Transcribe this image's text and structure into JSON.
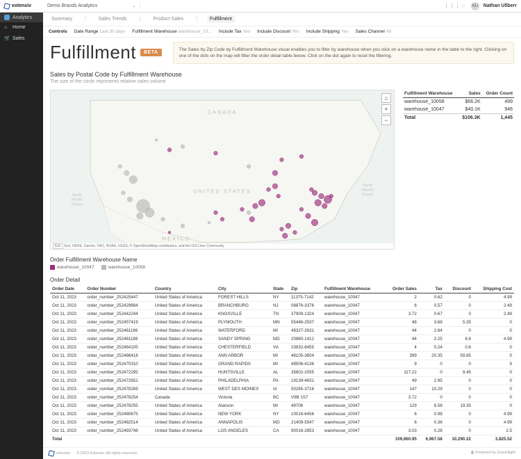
{
  "header": {
    "logo_text": "extensiv",
    "brand": "Demo Brands Analytics",
    "user": "Nathan Ullberr",
    "user_initials": "NU"
  },
  "sidebar": {
    "section_label": "Analytics",
    "items": [
      {
        "icon": "⌂",
        "label": "Home"
      },
      {
        "icon": "🛒",
        "label": "Sales"
      }
    ]
  },
  "tabs": {
    "items": [
      "Summary",
      "Sales Trends",
      "Product Sales",
      "Fulfillment"
    ],
    "active": "Fulfillment"
  },
  "controls": {
    "label": "Controls",
    "items": [
      {
        "k": "Date Range",
        "v": "Last 30 days"
      },
      {
        "k": "Fulfillment Warehouse",
        "v": "warehouse_10..."
      },
      {
        "k": "Include Tax",
        "v": "Yes"
      },
      {
        "k": "Include Discount",
        "v": "Yes"
      },
      {
        "k": "Include Shipping",
        "v": "Yes"
      },
      {
        "k": "Sales Channel",
        "v": "All"
      }
    ]
  },
  "hero": {
    "title": "Fulfillment",
    "badge": "BETA",
    "info": "The Sales by Zip Code by Fulfillment Warehouse visual enables you to filter by warehouse when you click on a warehouse name in the table to the right. Clicking on one of the dots on the map will filter the order detail table below. Click on the dot again to reset the filtering."
  },
  "map_section": {
    "title": "Sales by Postal Code by Fulfillment Warehouse",
    "subtitle": "The size of the circle represents relative sales volume",
    "attribution": "Esri, HERE, Garmin, FAO, NOAA, USGS, © OpenStreetMap contributors, and the GIS User Community",
    "labels": {
      "canada": "CANADA",
      "us": "UNITED STATES",
      "mexico": "MEXICO",
      "pacific": "North Pacific Ocean",
      "atlantic": "North Atlantic Ocean"
    },
    "colors": {
      "wh_10047": "#9b2e7a",
      "wh_10058": "#b8b8b8",
      "land": "#f6f6f2",
      "water": "#eef3f1",
      "border": "#d6d6ce"
    },
    "points": [
      [
        380,
        95,
        3,
        "a"
      ],
      [
        350,
        100,
        3,
        "a"
      ],
      [
        340,
        120,
        4,
        "a"
      ],
      [
        300,
        110,
        3,
        "b"
      ],
      [
        250,
        90,
        3,
        "a"
      ],
      [
        200,
        80,
        3,
        "b"
      ],
      [
        180,
        85,
        3,
        "a"
      ],
      [
        160,
        70,
        2,
        "b"
      ],
      [
        420,
        160,
        6,
        "a"
      ],
      [
        410,
        155,
        4,
        "a"
      ],
      [
        400,
        150,
        4,
        "a"
      ],
      [
        395,
        145,
        3,
        "a"
      ],
      [
        405,
        165,
        5,
        "a"
      ],
      [
        415,
        170,
        4,
        "a"
      ],
      [
        425,
        155,
        3,
        "a"
      ],
      [
        320,
        165,
        5,
        "a"
      ],
      [
        310,
        170,
        4,
        "a"
      ],
      [
        300,
        180,
        3,
        "b"
      ],
      [
        290,
        175,
        3,
        "a"
      ],
      [
        305,
        190,
        4,
        "a"
      ],
      [
        140,
        170,
        10,
        "b"
      ],
      [
        150,
        180,
        7,
        "b"
      ],
      [
        135,
        185,
        5,
        "b"
      ],
      [
        120,
        160,
        4,
        "b"
      ],
      [
        110,
        150,
        3,
        "b"
      ],
      [
        125,
        130,
        6,
        "b"
      ],
      [
        115,
        120,
        4,
        "b"
      ],
      [
        105,
        110,
        3,
        "b"
      ],
      [
        360,
        200,
        4,
        "a"
      ],
      [
        350,
        205,
        3,
        "a"
      ],
      [
        370,
        210,
        3,
        "a"
      ],
      [
        355,
        215,
        4,
        "a"
      ],
      [
        250,
        180,
        3,
        "a"
      ],
      [
        260,
        190,
        3,
        "a"
      ],
      [
        240,
        195,
        2,
        "b"
      ],
      [
        200,
        200,
        3,
        "b"
      ],
      [
        180,
        210,
        2,
        "a"
      ],
      [
        170,
        190,
        3,
        "b"
      ],
      [
        390,
        185,
        4,
        "a"
      ],
      [
        400,
        195,
        5,
        "a"
      ],
      [
        380,
        175,
        3,
        "a"
      ],
      [
        330,
        145,
        3,
        "a"
      ],
      [
        340,
        140,
        4,
        "a"
      ],
      [
        345,
        155,
        3,
        "a"
      ]
    ]
  },
  "summary": {
    "headers": [
      "Fulfillment Warehouse",
      "Sales",
      "Order Count"
    ],
    "rows": [
      [
        "warehouse_10058",
        "$66.2K",
        "499"
      ],
      [
        "warehouse_10047",
        "$40.1K",
        "946"
      ]
    ],
    "total": [
      "Total",
      "$106.3K",
      "1,445"
    ]
  },
  "legend": {
    "title": "Order Fulfillment Warehouse Name",
    "items": [
      {
        "color": "#9b2e7a",
        "label": "warehouse_10047"
      },
      {
        "color": "#b8b8b8",
        "label": "warehouse_10058"
      }
    ]
  },
  "detail": {
    "title": "Order Detail",
    "columns": [
      "Order Date",
      "Order Number",
      "Country",
      "City",
      "State",
      "Zip",
      "Fulfillment Warehouse",
      "Order Sales",
      "Tax",
      "Discount",
      "Shipping Cost"
    ],
    "align": [
      "l",
      "l",
      "l",
      "l",
      "l",
      "l",
      "l",
      "r",
      "r",
      "r",
      "r"
    ],
    "rows": [
      [
        "Oct 11, 2023",
        "order_number_252425447",
        "United States of America",
        "FOREST HILLS",
        "NY",
        "11375-7142",
        "warehouse_10047",
        "2",
        "0.62",
        "0",
        "4.99"
      ],
      [
        "Oct 11, 2023",
        "order_number_252429684",
        "United States of America",
        "BRANCHBURG",
        "NJ",
        "08876-3376",
        "warehouse_10047",
        "6",
        "0.57",
        "0",
        "2.49"
      ],
      [
        "Oct 11, 2023",
        "order_number_252442244",
        "United States of America",
        "KNOXVILLE",
        "TN",
        "37909-1324",
        "warehouse_10047",
        "3.72",
        "0.67",
        "0",
        "2.49"
      ],
      [
        "Oct 11, 2023",
        "order_number_252457419",
        "United States of America",
        "PLYMOUTH",
        "MN",
        "55446-2537",
        "warehouse_10047",
        "48",
        "3.68",
        "5.35",
        "0"
      ],
      [
        "Oct 11, 2023",
        "order_number_252461186",
        "United States of America",
        "WATERFORD",
        "MI",
        "48327-2631",
        "warehouse_10047",
        "44",
        "2.64",
        "0",
        "0"
      ],
      [
        "Oct 11, 2023",
        "order_number_252461188",
        "United States of America",
        "SANDY SPRING",
        "MD",
        "20860-1412",
        "warehouse_10047",
        "44",
        "2.25",
        "6.6",
        "4.99"
      ],
      [
        "Oct 11, 2023",
        "order_number_252464105",
        "United States of America",
        "CHESTERFIELD",
        "VA",
        "23832-8455",
        "warehouse_10047",
        "4",
        "0.24",
        "0.6",
        "0"
      ],
      [
        "Oct 11, 2023",
        "order_number_252466418",
        "United States of America",
        "ANN ARBOR",
        "MI",
        "48105-3604",
        "warehouse_10047",
        "399",
        "20.35",
        "59.85",
        "0"
      ],
      [
        "Oct 11, 2023",
        "order_number_252470310",
        "United States of America",
        "GRAND RAPIDS",
        "MI",
        "49506-4136",
        "warehouse_10047",
        "9",
        "0",
        "0",
        "9"
      ],
      [
        "Oct 11, 2023",
        "order_number_252472295",
        "United States of America",
        "HUNTSVILLE",
        "AL",
        "35802-2055",
        "warehouse_10047",
        "117.22",
        "0",
        "9.45",
        "0"
      ],
      [
        "Oct 11, 2023",
        "order_number_252472651",
        "United States of America",
        "PHILADELPHIA",
        "PA",
        "19139-4631",
        "warehouse_10047",
        "49",
        "2.95",
        "0",
        "0"
      ],
      [
        "Oct 11, 2023",
        "order_number_252478269",
        "United States of America",
        "WEST DES MOINES",
        "IA",
        "50265-3716",
        "warehouse_10047",
        "147",
        "10.29",
        "0",
        "0"
      ],
      [
        "Oct 11, 2023",
        "order_number_252478254",
        "Canada",
        "Victoria",
        "BC",
        "V9B 1S7",
        "warehouse_10047",
        "3.72",
        "0",
        "0",
        "0"
      ],
      [
        "Oct 11, 2023",
        "order_number_252478255",
        "United States of America",
        "Alanson",
        "MI",
        "49706",
        "warehouse_10047",
        "129",
        "6.58",
        "19.35",
        "0"
      ],
      [
        "Oct 11, 2023",
        "order_number_252480675",
        "United States of America",
        "NEW YORK",
        "NY",
        "10016-6456",
        "warehouse_10047",
        "6",
        "0.98",
        "0",
        "4.99"
      ],
      [
        "Oct 11, 2023",
        "order_number_252482514",
        "United States of America",
        "ANNAPOLIS",
        "MD",
        "21409-5547",
        "warehouse_10047",
        "6",
        "0.36",
        "0",
        "4.99"
      ],
      [
        "Oct 11, 2023",
        "order_number_252493748",
        "United States of America",
        "LOS ANGELES",
        "CA",
        "90016-2853",
        "warehouse_10047",
        "3.03",
        "0.28",
        "0",
        "2.5"
      ]
    ],
    "total": [
      "Total",
      "",
      "",
      "",
      "",
      "",
      "",
      "109,960.95",
      "6,967.58",
      "10,290.22",
      "3,825.52"
    ]
  },
  "footer": {
    "logo": "extensiv",
    "copyright": "© 2023 Extensiv. All rights reserved.",
    "powered": "Powered by QuickSight"
  }
}
